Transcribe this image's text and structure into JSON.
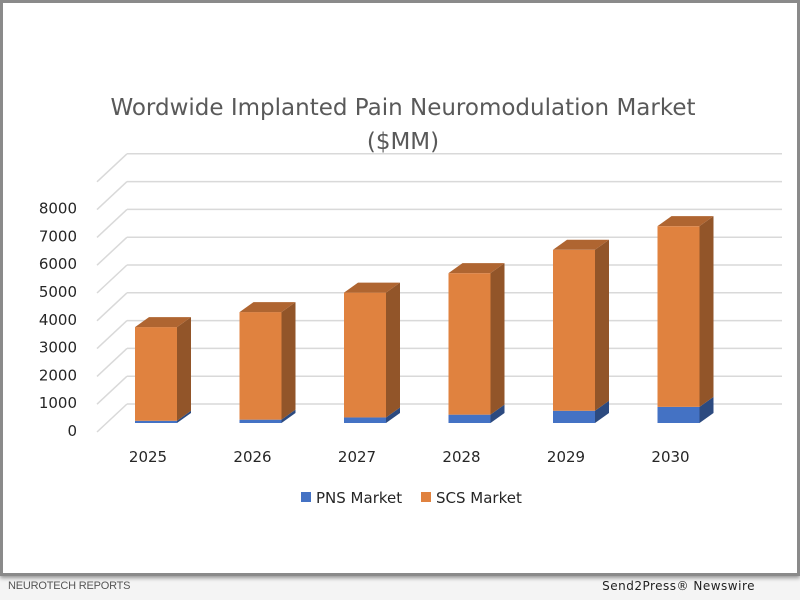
{
  "chart_data": {
    "type": "bar",
    "stacked": true,
    "style": "3d-column",
    "title": "Wordwide Implanted Pain Neuromodulation Market",
    "subtitle": "($MM)",
    "xlabel": "",
    "ylabel": "",
    "categories": [
      "2025",
      "2026",
      "2027",
      "2028",
      "2029",
      "2030"
    ],
    "series": [
      {
        "name": "PNS Market",
        "color": "#4472C4",
        "values": [
          80,
          120,
          200,
          300,
          440,
          580
        ]
      },
      {
        "name": "SCS Market",
        "color": "#E0823F",
        "values": [
          3370,
          3870,
          4490,
          5090,
          5790,
          6500
        ]
      }
    ],
    "yticks": [
      "0",
      "1000",
      "2000",
      "3000",
      "4000",
      "5000",
      "6000",
      "7000",
      "8000"
    ],
    "ylim": [
      0,
      9000
    ],
    "grid": true,
    "legend": "bottom"
  },
  "footer": {
    "source": "NEUROTECH REPORTS",
    "credit": "Send2Press® Newswire"
  }
}
